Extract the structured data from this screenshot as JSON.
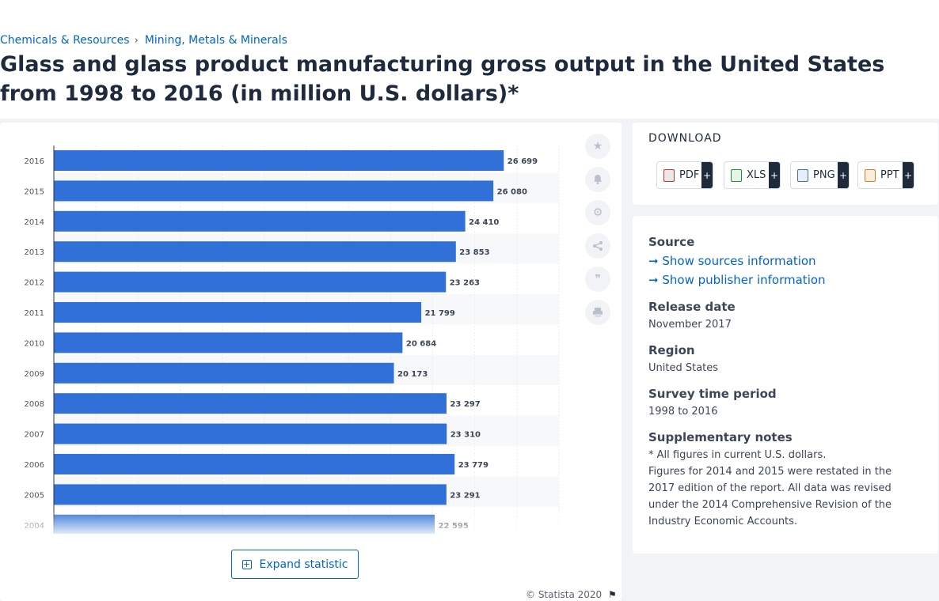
{
  "breadcrumb": {
    "item1": "Chemicals & Resources",
    "item2": "Mining, Metals & Minerals"
  },
  "title": "Glass and glass product manufacturing gross output in the United States from 1998 to 2016 (in million U.S. dollars)*",
  "chart_data": {
    "type": "bar",
    "orientation": "horizontal",
    "categories": [
      "2016",
      "2015",
      "2014",
      "2013",
      "2012",
      "2011",
      "2010",
      "2009",
      "2008",
      "2007",
      "2006",
      "2005",
      "2004"
    ],
    "values": [
      26699,
      26080,
      24410,
      23853,
      23263,
      21799,
      20684,
      20173,
      23297,
      23310,
      23779,
      23291,
      22595
    ],
    "value_labels": [
      "26 699",
      "26 080",
      "24 410",
      "23 853",
      "23 263",
      "21 799",
      "20 684",
      "20 173",
      "23 297",
      "23 310",
      "23 779",
      "23 291",
      "22 595"
    ],
    "title": "",
    "xlabel": "",
    "ylabel": "",
    "xlim": [
      0,
      30000
    ],
    "grid": true,
    "bar_color": "#3070d8"
  },
  "tools": {
    "star": "star-icon",
    "bell": "bell-icon",
    "gear": "gear-icon",
    "share": "share-icon",
    "quote": "quote-icon",
    "print": "print-icon"
  },
  "expand_label": "Expand statistic",
  "copyright": "© Statista 2020",
  "download": {
    "title": "DOWNLOAD",
    "pdf": "PDF",
    "xls": "XLS",
    "png": "PNG",
    "ppt": "PPT",
    "plus": "+"
  },
  "info": {
    "source_label": "Source",
    "sources_link": "Show sources information",
    "publisher_link": "Show publisher information",
    "release_label": "Release date",
    "release_value": "November 2017",
    "region_label": "Region",
    "region_value": "United States",
    "survey_label": "Survey time period",
    "survey_value": "1998 to 2016",
    "notes_label": "Supplementary notes",
    "notes_line1": "* All figures in current U.S. dollars.",
    "notes_line2": "Figures for 2014 and 2015 were restated in the 2017 edition of the report. All data was revised under the 2014 Comprehensive Revision of the Industry Economic Accounts."
  }
}
